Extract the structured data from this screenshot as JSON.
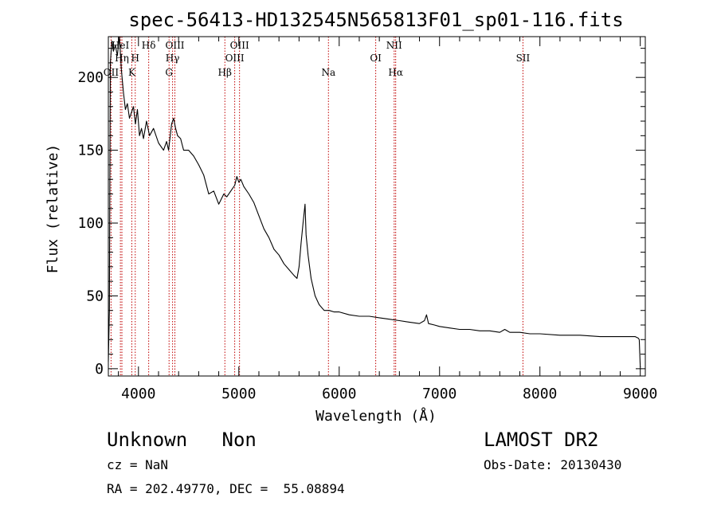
{
  "chart_data": {
    "type": "line",
    "title": "spec-56413-HD132545N565813F01_sp01-116.fits",
    "xlabel": "Wavelength (Å)",
    "ylabel": "Flux (relative)",
    "xlim": [
      3700,
      9050
    ],
    "ylim": [
      -5,
      228
    ],
    "x_ticks": [
      4000,
      5000,
      6000,
      7000,
      8000,
      9000
    ],
    "y_ticks": [
      0,
      50,
      100,
      150,
      200
    ],
    "grid": false,
    "series_color": "#000000",
    "reference_line_color": "#c00000",
    "spectral_lines": [
      {
        "label": "OII",
        "wavelength": 3727,
        "row": 3
      },
      {
        "label": "HeI",
        "wavelength": 3820,
        "row": 1
      },
      {
        "label": "Hη",
        "wavelength": 3835,
        "row": 2
      },
      {
        "label": "K",
        "wavelength": 3934,
        "row": 3
      },
      {
        "label": "H",
        "wavelength": 3968,
        "row": 2
      },
      {
        "label": "Hδ",
        "wavelength": 4102,
        "row": 1
      },
      {
        "label": "G",
        "wavelength": 4305,
        "row": 3
      },
      {
        "label": "Hγ",
        "wavelength": 4340,
        "row": 2
      },
      {
        "label": "OIII",
        "wavelength": 4363,
        "row": 1
      },
      {
        "label": "Hβ",
        "wavelength": 4861,
        "row": 3
      },
      {
        "label": "OIII",
        "wavelength": 4959,
        "row": 2
      },
      {
        "label": "OIII",
        "wavelength": 5007,
        "row": 1
      },
      {
        "label": "Na",
        "wavelength": 5893,
        "row": 3
      },
      {
        "label": "OI",
        "wavelength": 6364,
        "row": 2
      },
      {
        "label": "NII",
        "wavelength": 6548,
        "row": 1
      },
      {
        "label": "Hα",
        "wavelength": 6563,
        "row": 3
      },
      {
        "label": "SII",
        "wavelength": 7831,
        "row": 2
      }
    ],
    "series": [
      {
        "x": [
          3700,
          3710,
          3720,
          3735,
          3750,
          3770,
          3790,
          3810,
          3830,
          3850,
          3870,
          3890,
          3910,
          3930,
          3950,
          3970,
          3990,
          4010,
          4030,
          4050,
          4080,
          4110,
          4150,
          4200,
          4250,
          4280,
          4300,
          4330,
          4350,
          4370,
          4390,
          4420,
          4450,
          4500,
          4550,
          4600,
          4650,
          4700,
          4750,
          4800,
          4850,
          4880,
          4920,
          4960,
          4980,
          5000,
          5020,
          5050,
          5100,
          5150,
          5200,
          5250,
          5300,
          5350,
          5400,
          5450,
          5500,
          5550,
          5580,
          5600,
          5620,
          5640,
          5660,
          5670,
          5690,
          5720,
          5760,
          5800,
          5850,
          5900,
          5950,
          6000,
          6100,
          6200,
          6300,
          6400,
          6500,
          6600,
          6700,
          6800,
          6850,
          6870,
          6890,
          6950,
          7000,
          7100,
          7200,
          7300,
          7400,
          7500,
          7600,
          7650,
          7700,
          7800,
          7900,
          8000,
          8200,
          8400,
          8600,
          8800,
          8950,
          8980,
          8990,
          9000
        ],
        "y": [
          5,
          40,
          210,
          225,
          218,
          222,
          215,
          228,
          205,
          190,
          178,
          182,
          172,
          176,
          180,
          168,
          178,
          160,
          165,
          158,
          170,
          160,
          165,
          155,
          150,
          156,
          150,
          168,
          172,
          165,
          160,
          158,
          150,
          150,
          146,
          140,
          133,
          120,
          122,
          113,
          120,
          118,
          122,
          126,
          132,
          128,
          130,
          125,
          120,
          114,
          105,
          96,
          90,
          82,
          78,
          72,
          68,
          64,
          62,
          70,
          86,
          100,
          113,
          92,
          78,
          62,
          50,
          44,
          40,
          40,
          39,
          39,
          37,
          36,
          36,
          35,
          34,
          33,
          32,
          31,
          33,
          37,
          31,
          30,
          29,
          28,
          27,
          27,
          26,
          26,
          25,
          27,
          25,
          25,
          24,
          24,
          23,
          23,
          22,
          22,
          22,
          21,
          20,
          1
        ]
      }
    ]
  },
  "info": {
    "class_line": "Unknown   Non",
    "survey": "LAMOST DR2",
    "redshift": "cz = NaN",
    "obs_date": "Obs-Date: 20130430",
    "coords": "RA = 202.49770, DEC =  55.08894"
  }
}
